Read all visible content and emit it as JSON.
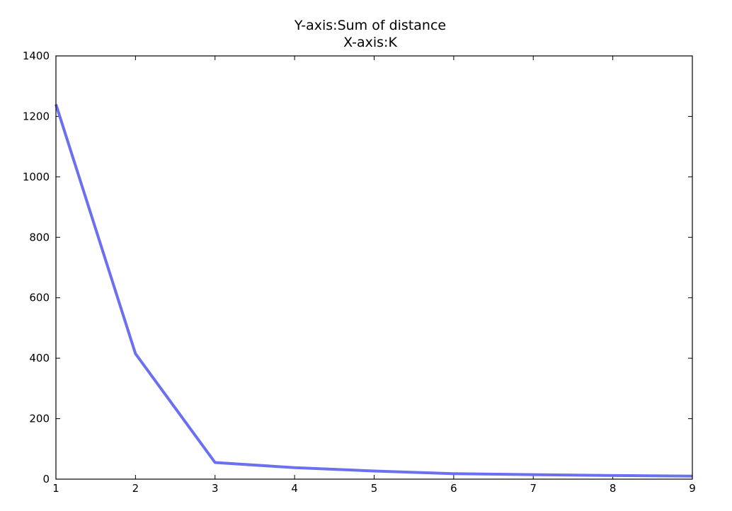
{
  "chart_data": {
    "type": "line",
    "title": "Y-axis:Sum of distance",
    "subtitle": "X-axis:K",
    "xlabel": "",
    "ylabel": "",
    "xlim": [
      1,
      9
    ],
    "ylim": [
      0,
      1400
    ],
    "xticks": [
      1,
      2,
      3,
      4,
      5,
      6,
      7,
      8,
      9
    ],
    "yticks": [
      0,
      200,
      400,
      600,
      800,
      1000,
      1200,
      1400
    ],
    "grid": false,
    "series": [
      {
        "color": "#6b70f0",
        "x": [
          1,
          2,
          3,
          4,
          5,
          6,
          7,
          8,
          9
        ],
        "y": [
          1240,
          415,
          55,
          38,
          27,
          18,
          15,
          12,
          10
        ]
      }
    ]
  }
}
